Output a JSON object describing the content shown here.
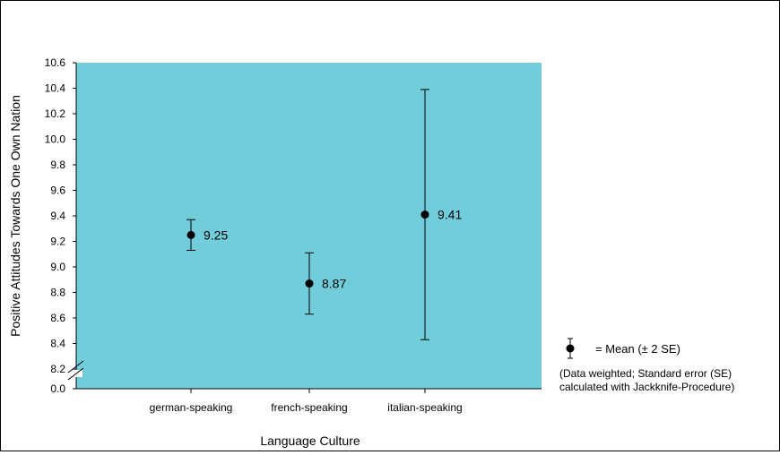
{
  "chart_data": {
    "type": "scatter",
    "title": "",
    "xlabel": "Language Culture",
    "ylabel": "Positive Attitudes Towards One Own Nation",
    "categories": [
      "german-speaking",
      "french-speaking",
      "italian-speaking"
    ],
    "series": [
      {
        "values": [
          9.25,
          8.87,
          9.41
        ],
        "error_low": [
          9.13,
          8.63,
          8.43
        ],
        "error_high": [
          9.37,
          9.11,
          10.39
        ],
        "data_labels": [
          "9.25",
          "8.87",
          "9.41"
        ]
      }
    ],
    "yticks": [
      "0.0",
      "8.2",
      "8.4",
      "8.6",
      "8.8",
      "9.0",
      "9.2",
      "9.4",
      "9.6",
      "9.8",
      "10.0",
      "10.2",
      "10.4",
      "10.6"
    ],
    "ylim": [
      8.2,
      10.6
    ],
    "y_axis_break": true,
    "grid": false,
    "plot_background": "#70CDD9",
    "marker_color": "#000000",
    "legend": {
      "position": "right",
      "label": "= Mean (± 2 SE)",
      "note_line1": "(Data weighted; Standard error (SE)",
      "note_line2": "calculated with Jackknife-Procedure)"
    }
  }
}
